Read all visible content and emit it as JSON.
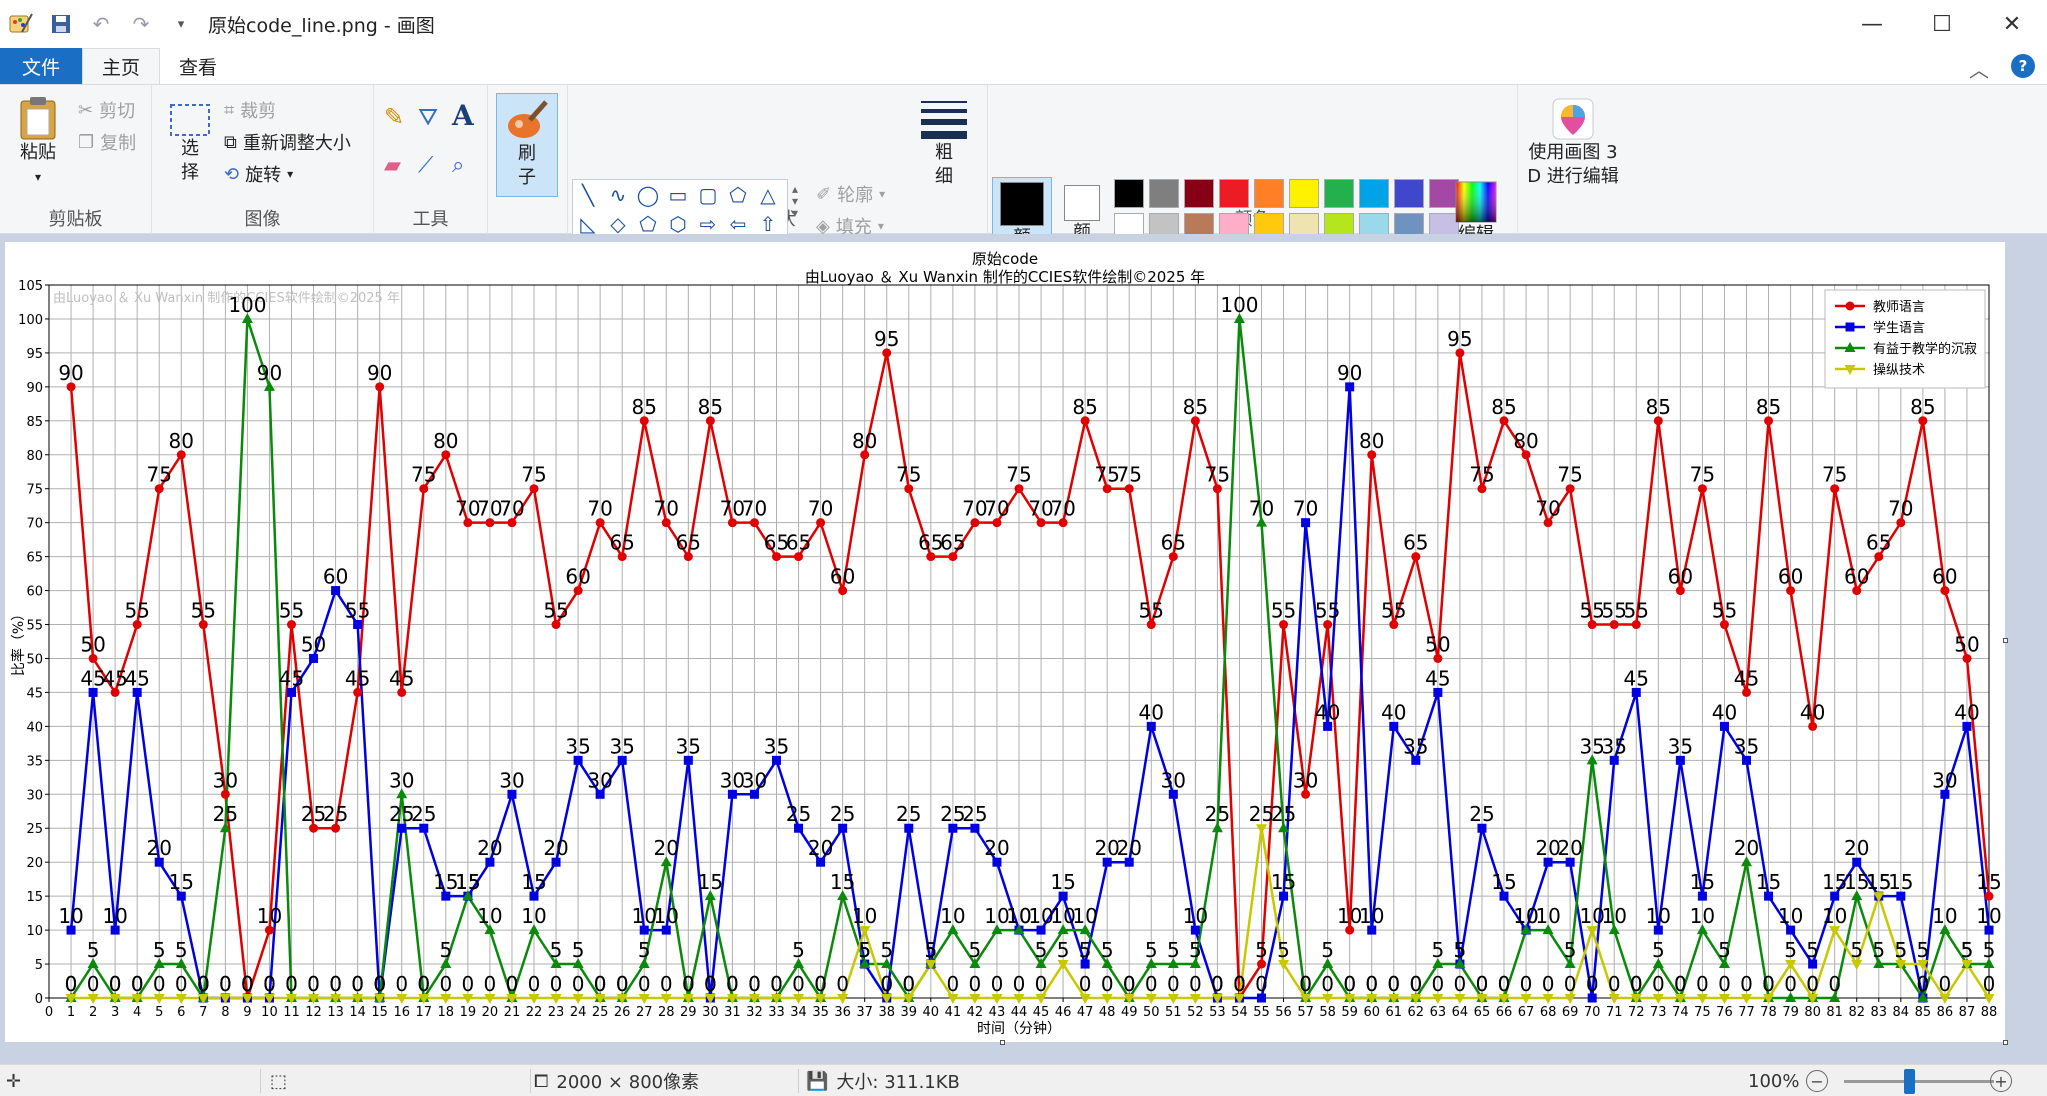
{
  "titlebar": {
    "title": "原始code_line.png - 画图",
    "minimize": "—",
    "maximize": "☐",
    "close": "✕"
  },
  "tabs": [
    {
      "label": "文件"
    },
    {
      "label": "主页"
    },
    {
      "label": "查看"
    }
  ],
  "ribbon": {
    "clipboard": {
      "label": "剪贴板",
      "paste": "粘贴",
      "cut": "剪切",
      "copy": "复制"
    },
    "image": {
      "label": "图像",
      "select_1": "选",
      "select_2": "择",
      "crop": "裁剪",
      "resize": "重新调整大小",
      "rotate": "旋转"
    },
    "tools": {
      "label": "工具"
    },
    "brush": {
      "label_1": "刷",
      "label_2": "子"
    },
    "shapes": {
      "label": "形状",
      "outline": "轮廓",
      "fill": "填充"
    },
    "size": {
      "label_1": "粗",
      "label_2": "细"
    },
    "color1": {
      "label_1": "颜",
      "label_2": "色 1"
    },
    "color2": {
      "label_1": "颜",
      "label_2": "色 2"
    },
    "colors": {
      "label": "颜色",
      "row1": [
        "#000000",
        "#7f7f7f",
        "#880015",
        "#ed1c24",
        "#ff7f27",
        "#fff200",
        "#22b14c",
        "#00a2e8",
        "#3f48cc",
        "#a349a4"
      ],
      "row2": [
        "#ffffff",
        "#c3c3c3",
        "#b97a57",
        "#ffaec9",
        "#ffc90e",
        "#efe4b0",
        "#b5e61d",
        "#99d9ea",
        "#7092be",
        "#c8bfe7"
      ],
      "row3": [
        "#ffffff",
        "#ffffff",
        "#ffffff",
        "#ffffff",
        "#ffffff",
        "#ffffff",
        "#ffffff",
        "#ffffff",
        "#ffffff",
        "#ffffff"
      ]
    },
    "edit_colors": {
      "label_1": "编辑",
      "label_2": "颜色"
    },
    "paint3d": {
      "label_1": "使用画图 3",
      "label_2": "D 进行编辑"
    }
  },
  "status": {
    "dimensions": "2000 × 800像素",
    "size": "大小: 311.1KB",
    "zoom": "100%"
  },
  "chart_data": {
    "type": "line",
    "title": "原始code",
    "subtitle": "由Luoyao ＆ Xu Wanxin 制作的CCIES软件绘制©2025 年",
    "watermark": "由Luoyao ＆ Xu Wanxin 制作的CCIES软件绘制©2025 年",
    "xlabel": "时间（分钟）",
    "ylabel": "比率（%）",
    "ylim": [
      0,
      105
    ],
    "xlim": [
      0,
      88
    ],
    "yticks": [
      0,
      5,
      10,
      15,
      20,
      25,
      30,
      35,
      40,
      45,
      50,
      55,
      60,
      65,
      70,
      75,
      80,
      85,
      90,
      95,
      100,
      105
    ],
    "grid": true,
    "legend_position": "top-right",
    "x": [
      1,
      2,
      3,
      4,
      5,
      6,
      7,
      8,
      9,
      10,
      11,
      12,
      13,
      14,
      15,
      16,
      17,
      18,
      19,
      20,
      21,
      22,
      23,
      24,
      25,
      26,
      27,
      28,
      29,
      30,
      31,
      32,
      33,
      34,
      35,
      36,
      37,
      38,
      39,
      40,
      41,
      42,
      43,
      44,
      45,
      46,
      47,
      48,
      49,
      50,
      51,
      52,
      53,
      54,
      55,
      56,
      57,
      58,
      59,
      60,
      61,
      62,
      63,
      64,
      65,
      66,
      67,
      68,
      69,
      70,
      71,
      72,
      73,
      74,
      75,
      76,
      77,
      78,
      79,
      80,
      81,
      82,
      83,
      84,
      85,
      86,
      87,
      88
    ],
    "series": [
      {
        "name": "教师语言",
        "color": "#e00000",
        "marker": "circle",
        "values": [
          90,
          50,
          45,
          55,
          75,
          80,
          55,
          30,
          0,
          10,
          55,
          25,
          25,
          45,
          90,
          45,
          75,
          80,
          70,
          70,
          70,
          75,
          55,
          60,
          70,
          65,
          85,
          70,
          65,
          85,
          70,
          70,
          65,
          65,
          70,
          60,
          80,
          95,
          75,
          65,
          65,
          70,
          70,
          75,
          70,
          70,
          85,
          75,
          75,
          55,
          65,
          85,
          75,
          0,
          5,
          55,
          30,
          55,
          10,
          80,
          55,
          65,
          50,
          95,
          75,
          85,
          80,
          70,
          75,
          55,
          55,
          55,
          85,
          60,
          75,
          55,
          45,
          85,
          60,
          40,
          75,
          60,
          65,
          70,
          85,
          60,
          50,
          15
        ]
      },
      {
        "name": "学生语言",
        "color": "#0000e0",
        "marker": "square",
        "values": [
          10,
          45,
          10,
          45,
          20,
          15,
          0,
          0,
          0,
          0,
          45,
          50,
          60,
          55,
          0,
          25,
          25,
          15,
          15,
          20,
          30,
          15,
          20,
          35,
          30,
          35,
          10,
          10,
          35,
          0,
          30,
          30,
          35,
          25,
          20,
          25,
          5,
          0,
          25,
          5,
          25,
          25,
          20,
          10,
          10,
          15,
          5,
          20,
          20,
          40,
          30,
          10,
          0,
          0,
          0,
          15,
          70,
          40,
          90,
          10,
          40,
          35,
          45,
          5,
          25,
          15,
          10,
          20,
          20,
          0,
          35,
          45,
          10,
          35,
          15,
          40,
          35,
          15,
          10,
          5,
          15,
          20,
          15,
          15,
          0,
          30,
          40,
          10
        ]
      },
      {
        "name": "有益于教学的沉寂",
        "color": "#0a8a0a",
        "marker": "triangle-up",
        "values": [
          0,
          5,
          0,
          0,
          5,
          5,
          0,
          25,
          100,
          90,
          0,
          0,
          0,
          0,
          0,
          30,
          0,
          5,
          15,
          10,
          0,
          10,
          5,
          5,
          0,
          0,
          5,
          20,
          0,
          15,
          0,
          0,
          0,
          5,
          0,
          15,
          5,
          5,
          0,
          5,
          10,
          5,
          10,
          10,
          5,
          10,
          10,
          5,
          0,
          5,
          5,
          5,
          25,
          100,
          70,
          25,
          0,
          5,
          0,
          0,
          0,
          0,
          5,
          5,
          0,
          0,
          10,
          10,
          5,
          35,
          10,
          0,
          5,
          0,
          10,
          5,
          20,
          0,
          0,
          0,
          0,
          15,
          5,
          5,
          0,
          10,
          5,
          5
        ]
      },
      {
        "name": "操纵技术",
        "color": "#c8c800",
        "marker": "triangle-down",
        "values": [
          0,
          0,
          0,
          0,
          0,
          0,
          0,
          0,
          0,
          0,
          0,
          0,
          0,
          0,
          0,
          0,
          0,
          0,
          0,
          0,
          0,
          0,
          0,
          0,
          0,
          0,
          0,
          0,
          0,
          0,
          0,
          0,
          0,
          0,
          0,
          0,
          10,
          0,
          0,
          5,
          0,
          0,
          0,
          0,
          0,
          5,
          0,
          0,
          0,
          0,
          0,
          0,
          0,
          0,
          25,
          5,
          0,
          0,
          0,
          0,
          0,
          0,
          0,
          0,
          0,
          0,
          0,
          0,
          0,
          10,
          0,
          0,
          0,
          0,
          0,
          0,
          0,
          0,
          5,
          0,
          10,
          5,
          15,
          5,
          5,
          0,
          5,
          0
        ]
      }
    ]
  }
}
